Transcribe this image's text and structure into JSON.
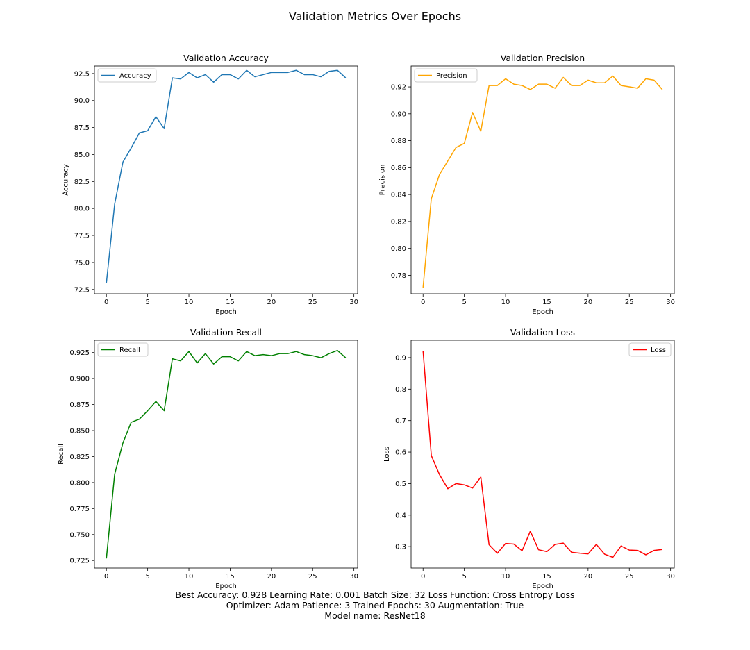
{
  "figure": {
    "title": "Validation Metrics Over Epochs",
    "footer_lines": [
      "Best Accuracy: 0.928 Learning Rate: 0.001 Batch Size: 32 Loss Function: Cross Entropy Loss",
      "Optimizer: Adam Patience: 3 Trained Epochs: 30 Augmentation: True",
      "Model name: ResNet18"
    ]
  },
  "chart_data": [
    {
      "type": "line",
      "title": "Validation Accuracy",
      "xlabel": "Epoch",
      "ylabel": "Accuracy",
      "xlim": [
        -1.45,
        30.45
      ],
      "ylim": [
        72.1,
        93.2
      ],
      "xticks": [
        0,
        5,
        10,
        15,
        20,
        25,
        30
      ],
      "yticks": [
        72.5,
        75.0,
        77.5,
        80.0,
        82.5,
        85.0,
        87.5,
        90.0,
        92.5
      ],
      "ytick_labels": [
        "72.5",
        "75.0",
        "77.5",
        "80.0",
        "82.5",
        "85.0",
        "87.5",
        "90.0",
        "92.5"
      ],
      "grid": false,
      "legend": "upper left",
      "series": [
        {
          "name": "Accuracy",
          "color": "#1f77b4",
          "x": [
            0,
            1,
            2,
            3,
            4,
            5,
            6,
            7,
            8,
            9,
            10,
            11,
            12,
            13,
            14,
            15,
            16,
            17,
            18,
            19,
            20,
            21,
            22,
            23,
            24,
            25,
            26,
            27,
            28,
            29
          ],
          "y": [
            73.1,
            80.4,
            84.3,
            85.6,
            87.0,
            87.2,
            88.5,
            87.4,
            92.1,
            92.0,
            92.6,
            92.1,
            92.4,
            91.7,
            92.4,
            92.4,
            92.0,
            92.8,
            92.2,
            92.4,
            92.6,
            92.6,
            92.6,
            92.8,
            92.4,
            92.4,
            92.2,
            92.7,
            92.8,
            92.1
          ]
        }
      ]
    },
    {
      "type": "line",
      "title": "Validation Precision",
      "xlabel": "Epoch",
      "ylabel": "Precision",
      "xlim": [
        -1.45,
        30.45
      ],
      "ylim": [
        0.7663,
        0.9355
      ],
      "xticks": [
        0,
        5,
        10,
        15,
        20,
        25,
        30
      ],
      "yticks": [
        0.78,
        0.8,
        0.82,
        0.84,
        0.86,
        0.88,
        0.9,
        0.92
      ],
      "ytick_labels": [
        "0.78",
        "0.80",
        "0.82",
        "0.84",
        "0.86",
        "0.88",
        "0.90",
        "0.92"
      ],
      "grid": false,
      "legend": "upper left",
      "series": [
        {
          "name": "Precision",
          "color": "#ffa500",
          "x": [
            0,
            1,
            2,
            3,
            4,
            5,
            6,
            7,
            8,
            9,
            10,
            11,
            12,
            13,
            14,
            15,
            16,
            17,
            18,
            19,
            20,
            21,
            22,
            23,
            24,
            25,
            26,
            27,
            28,
            29
          ],
          "y": [
            0.771,
            0.837,
            0.855,
            0.865,
            0.875,
            0.878,
            0.901,
            0.887,
            0.921,
            0.921,
            0.926,
            0.922,
            0.921,
            0.918,
            0.922,
            0.922,
            0.919,
            0.927,
            0.921,
            0.921,
            0.925,
            0.923,
            0.923,
            0.928,
            0.921,
            0.92,
            0.919,
            0.926,
            0.925,
            0.918
          ]
        }
      ]
    },
    {
      "type": "line",
      "title": "Validation Recall",
      "xlabel": "Epoch",
      "ylabel": "Recall",
      "xlim": [
        -1.45,
        30.45
      ],
      "ylim": [
        0.7178,
        0.9368
      ],
      "xticks": [
        0,
        5,
        10,
        15,
        20,
        25,
        30
      ],
      "yticks": [
        0.725,
        0.75,
        0.775,
        0.8,
        0.825,
        0.85,
        0.875,
        0.9,
        0.925
      ],
      "ytick_labels": [
        "0.725",
        "0.750",
        "0.775",
        "0.800",
        "0.825",
        "0.850",
        "0.875",
        "0.900",
        "0.925"
      ],
      "grid": false,
      "legend": "upper left",
      "series": [
        {
          "name": "Recall",
          "color": "#008000",
          "x": [
            0,
            1,
            2,
            3,
            4,
            5,
            6,
            7,
            8,
            9,
            10,
            11,
            12,
            13,
            14,
            15,
            16,
            17,
            18,
            19,
            20,
            21,
            22,
            23,
            24,
            25,
            26,
            27,
            28,
            29
          ],
          "y": [
            0.727,
            0.808,
            0.838,
            0.858,
            0.861,
            0.869,
            0.878,
            0.869,
            0.919,
            0.917,
            0.926,
            0.915,
            0.924,
            0.914,
            0.921,
            0.921,
            0.917,
            0.926,
            0.922,
            0.923,
            0.922,
            0.924,
            0.924,
            0.926,
            0.923,
            0.922,
            0.92,
            0.924,
            0.927,
            0.92
          ]
        }
      ]
    },
    {
      "type": "line",
      "title": "Validation Loss",
      "xlabel": "Epoch",
      "ylabel": "Loss",
      "xlim": [
        -1.45,
        30.45
      ],
      "ylim": [
        0.232,
        0.955
      ],
      "xticks": [
        0,
        5,
        10,
        15,
        20,
        25,
        30
      ],
      "yticks": [
        0.3,
        0.4,
        0.5,
        0.6,
        0.7,
        0.8,
        0.9
      ],
      "ytick_labels": [
        "0.3",
        "0.4",
        "0.5",
        "0.6",
        "0.7",
        "0.8",
        "0.9"
      ],
      "grid": false,
      "legend": "upper right",
      "series": [
        {
          "name": "Loss",
          "color": "#ff0000",
          "x": [
            0,
            1,
            2,
            3,
            4,
            5,
            6,
            7,
            8,
            9,
            10,
            11,
            12,
            13,
            14,
            15,
            16,
            17,
            18,
            19,
            20,
            21,
            22,
            23,
            24,
            25,
            26,
            27,
            28,
            29
          ],
          "y": [
            0.921,
            0.589,
            0.528,
            0.484,
            0.5,
            0.496,
            0.486,
            0.521,
            0.306,
            0.279,
            0.31,
            0.308,
            0.287,
            0.349,
            0.29,
            0.284,
            0.307,
            0.311,
            0.282,
            0.279,
            0.277,
            0.307,
            0.276,
            0.266,
            0.302,
            0.289,
            0.288,
            0.274,
            0.288,
            0.291
          ]
        }
      ]
    }
  ]
}
